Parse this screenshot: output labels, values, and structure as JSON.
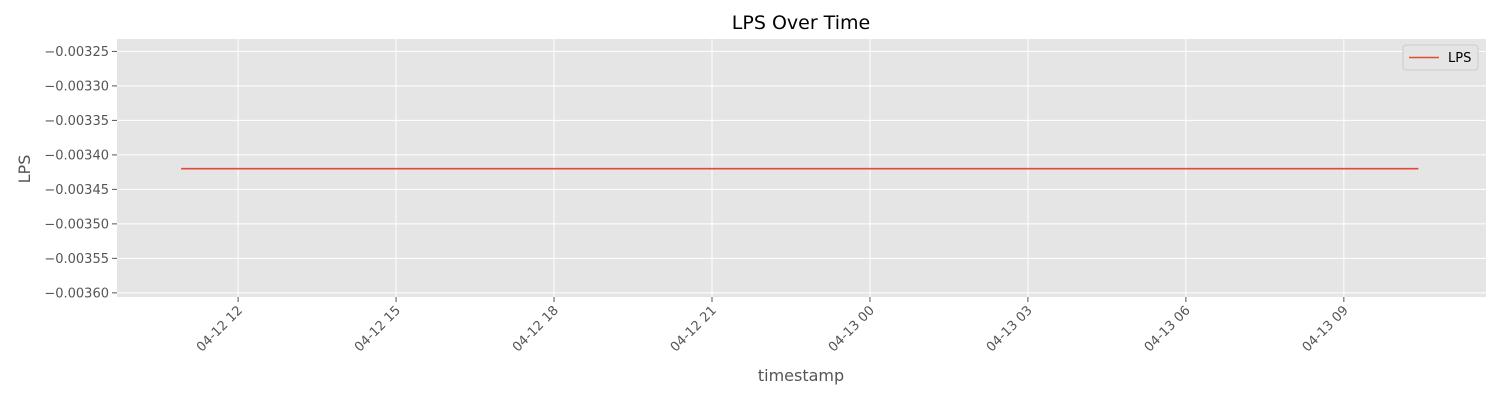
{
  "chart_data": {
    "type": "line",
    "title": "LPS Over Time",
    "xlabel": "timestamp",
    "ylabel": "LPS",
    "grid": true,
    "legend_position": "upper-right",
    "x_tick_labels": [
      "04-12 12",
      "04-12 15",
      "04-12 18",
      "04-12 21",
      "04-13 00",
      "04-13 03",
      "04-13 06",
      "04-13 09"
    ],
    "y_tick_labels": [
      "−0.00325",
      "−0.00330",
      "−0.00335",
      "−0.00340",
      "−0.00345",
      "−0.00350",
      "−0.00355",
      "−0.00360"
    ],
    "y_ticks": [
      -0.00325,
      -0.0033,
      -0.00335,
      -0.0034,
      -0.00345,
      -0.0035,
      -0.00355,
      -0.0036
    ],
    "ylim": [
      -0.003606,
      -0.003232
    ],
    "xlim": [
      "2024-04-12 09:42",
      "2024-04-13 11:42"
    ],
    "series": [
      {
        "name": "LPS",
        "color": "#E24A33",
        "x": [
          "2024-04-12 10:55",
          "2024-04-13 10:25"
        ],
        "y": [
          -0.00342,
          -0.00342
        ]
      }
    ]
  }
}
